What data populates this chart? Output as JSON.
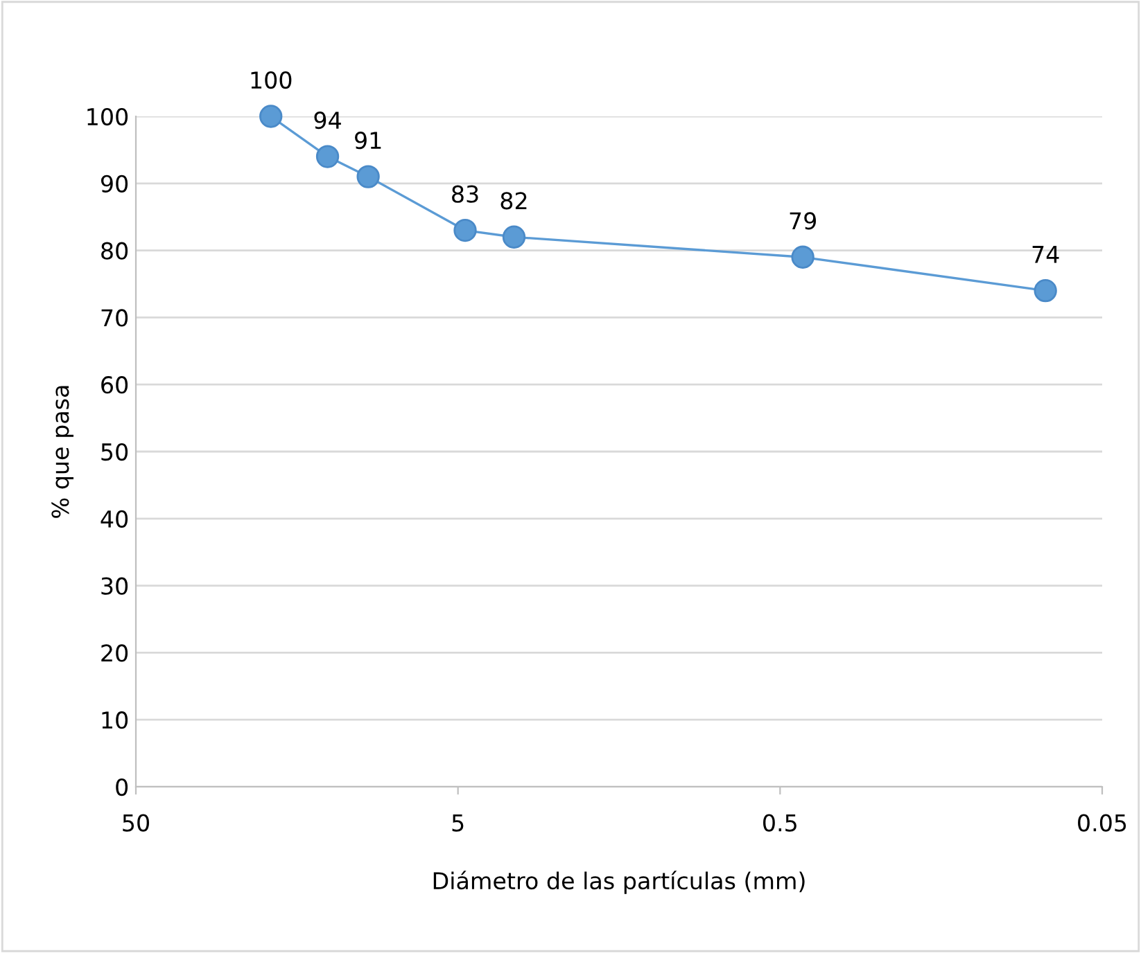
{
  "chart_data": {
    "type": "line",
    "xlabel": "Diámetro de las partículas (mm)",
    "ylabel": "% que pasa",
    "x": [
      19.05,
      12.7,
      9.5,
      4.75,
      3.35,
      0.425,
      0.075
    ],
    "series": [
      {
        "color": "#5b9bd5",
        "values": [
          100,
          94,
          91,
          83,
          82,
          79,
          74
        ]
      }
    ],
    "log": "x",
    "xlim": [
      50,
      0.05
    ],
    "xticks": [
      50,
      5,
      0.5,
      0.05
    ],
    "ylim": [
      0,
      100
    ],
    "yticks": [
      0,
      10,
      20,
      30,
      40,
      50,
      60,
      70,
      80,
      90,
      100
    ],
    "grid": "y",
    "marker": "circle",
    "line_style": "solid",
    "data_labels": true,
    "legend": false
  }
}
